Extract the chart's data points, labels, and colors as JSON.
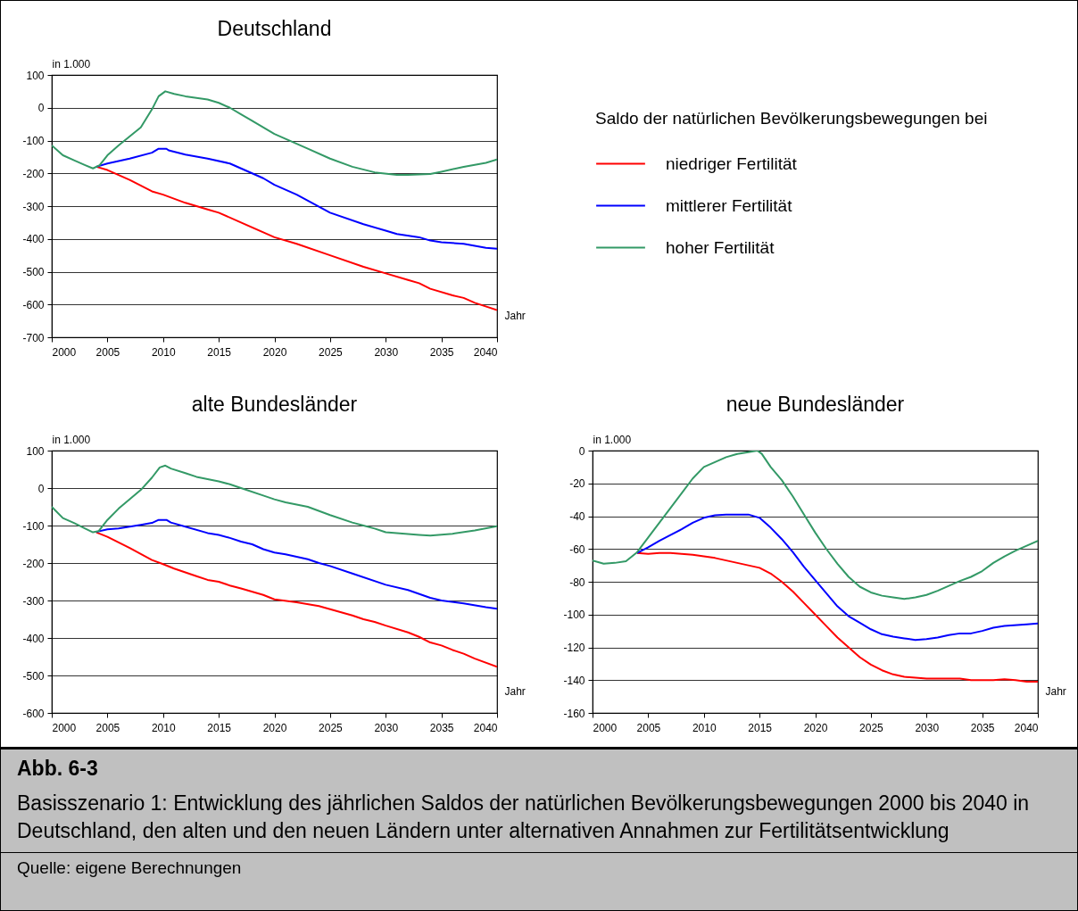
{
  "chart_data": [
    {
      "type": "line",
      "title": "Deutschland",
      "xlabel": "Jahr",
      "ylabel": "in 1.000",
      "legend_title": "Saldo der natürlichen Bevölkerungsbewegungen bei",
      "legend": "right",
      "grid": "y",
      "xlim": [
        2000,
        2040
      ],
      "xticks": [
        2000,
        2005,
        2010,
        2015,
        2020,
        2025,
        2030,
        2035,
        2040
      ],
      "ylim": [
        -700,
        100
      ],
      "yticks": [
        -700,
        -600,
        -500,
        -400,
        -300,
        -200,
        -100,
        0,
        100
      ],
      "annotations": [
        "Abb. 6-3",
        "Basisszenario 1: Entwicklung des jährlichen Saldos der natürlichen Bevölkerungsbewegungen 2000 bis 2040 in Deutschland, den alten und den neuen Ländern unter alternativen Annahmen zur Fertilitätsentwicklung",
        "Quelle: eigene Berechnungen"
      ],
      "series": [
        {
          "name": "niedriger Fertilität",
          "color": "#ff0000",
          "x": [
            2004,
            2005,
            2007,
            2009,
            2010,
            2012,
            2014,
            2015,
            2017,
            2019,
            2020,
            2022,
            2025,
            2028,
            2030,
            2032,
            2033,
            2034,
            2036,
            2037,
            2038,
            2040
          ],
          "values": [
            -180,
            -190,
            -220,
            -255,
            -265,
            -290,
            -310,
            -320,
            -350,
            -380,
            -395,
            -415,
            -450,
            -485,
            -505,
            -525,
            -535,
            -552,
            -572,
            -580,
            -595,
            -617
          ]
        },
        {
          "name": "mittlerer Fertilität",
          "color": "#0000ff",
          "x": [
            2004,
            2005,
            2007,
            2009,
            2009.6,
            2010.3,
            2010.5,
            2012,
            2014,
            2016,
            2017,
            2019,
            2020,
            2022,
            2025,
            2028,
            2030,
            2031,
            2033,
            2034,
            2035,
            2037,
            2039,
            2040
          ],
          "values": [
            -180,
            -170,
            -155,
            -137,
            -125,
            -125,
            -130,
            -143,
            -155,
            -170,
            -185,
            -215,
            -235,
            -265,
            -320,
            -355,
            -375,
            -385,
            -395,
            -405,
            -410,
            -415,
            -427,
            -430
          ]
        },
        {
          "name": "hoher Fertilität",
          "color": "#339966",
          "x": [
            2000,
            2001,
            2002,
            2003,
            2003.7,
            2004.3,
            2005,
            2006,
            2008,
            2009,
            2009.6,
            2010.2,
            2011,
            2012,
            2014,
            2015,
            2016,
            2017,
            2018,
            2020,
            2022,
            2023,
            2025,
            2027,
            2029,
            2031,
            2032,
            2034,
            2035,
            2037,
            2039,
            2040
          ],
          "values": [
            -115,
            -145,
            -160,
            -175,
            -185,
            -175,
            -145,
            -115,
            -60,
            -5,
            35,
            50,
            42,
            35,
            25,
            15,
            0,
            -20,
            -40,
            -80,
            -110,
            -125,
            -155,
            -180,
            -197,
            -205,
            -205,
            -202,
            -195,
            -180,
            -168,
            -158
          ]
        }
      ]
    },
    {
      "type": "line",
      "title": "alte Bundesländer",
      "xlabel": "Jahr",
      "ylabel": "in 1.000",
      "grid": "y",
      "xlim": [
        2000,
        2040
      ],
      "xticks": [
        2000,
        2005,
        2010,
        2015,
        2020,
        2025,
        2030,
        2035,
        2040
      ],
      "ylim": [
        -600,
        100
      ],
      "yticks": [
        -600,
        -500,
        -400,
        -300,
        -200,
        -100,
        0,
        100
      ],
      "series": [
        {
          "color": "#ff0000",
          "x": [
            2004,
            2005,
            2007,
            2009,
            2010,
            2011,
            2013,
            2014,
            2015,
            2016,
            2017,
            2019,
            2020,
            2022,
            2024,
            2025,
            2027,
            2028,
            2029,
            2030,
            2032,
            2033,
            2034,
            2035,
            2036,
            2037,
            2038,
            2040
          ],
          "values": [
            -118,
            -130,
            -160,
            -192,
            -203,
            -215,
            -235,
            -245,
            -250,
            -260,
            -268,
            -285,
            -297,
            -305,
            -315,
            -323,
            -340,
            -350,
            -357,
            -367,
            -385,
            -397,
            -412,
            -420,
            -432,
            -442,
            -455,
            -477
          ]
        },
        {
          "color": "#0000ff",
          "x": [
            2004,
            2005,
            2006,
            2007,
            2008,
            2009,
            2009.6,
            2010.3,
            2010.7,
            2012,
            2014,
            2015,
            2016,
            2017,
            2018,
            2019,
            2020,
            2021,
            2023,
            2024,
            2025,
            2027,
            2030,
            2032,
            2034,
            2035,
            2037,
            2039,
            2040
          ],
          "values": [
            -117,
            -110,
            -108,
            -103,
            -98,
            -93,
            -85,
            -85,
            -92,
            -103,
            -120,
            -125,
            -133,
            -143,
            -150,
            -163,
            -172,
            -177,
            -190,
            -200,
            -208,
            -228,
            -258,
            -272,
            -293,
            -300,
            -308,
            -318,
            -322
          ]
        },
        {
          "color": "#339966",
          "x": [
            2000,
            2001,
            2002,
            2003,
            2003.7,
            2004.2,
            2005,
            2006,
            2008,
            2009,
            2009.7,
            2010.2,
            2010.7,
            2012,
            2013,
            2015,
            2016,
            2017,
            2019,
            2020,
            2021,
            2023,
            2025,
            2027,
            2028,
            2029,
            2030,
            2031,
            2033,
            2034,
            2036,
            2038,
            2040
          ],
          "values": [
            -50,
            -80,
            -93,
            -108,
            -118,
            -115,
            -85,
            -55,
            -5,
            28,
            55,
            60,
            52,
            40,
            30,
            18,
            10,
            0,
            -20,
            -30,
            -38,
            -50,
            -72,
            -92,
            -100,
            -108,
            -118,
            -120,
            -125,
            -127,
            -122,
            -113,
            -102
          ]
        }
      ]
    },
    {
      "type": "line",
      "title": "neue Bundesländer",
      "xlabel": "Jahr",
      "ylabel": "in 1.000",
      "grid": "y",
      "xlim": [
        2000,
        2040
      ],
      "xticks": [
        2000,
        2005,
        2010,
        2015,
        2020,
        2025,
        2030,
        2035,
        2040
      ],
      "ylim": [
        -160,
        0
      ],
      "yticks": [
        -160,
        -140,
        -120,
        -100,
        -80,
        -60,
        -40,
        -20,
        0
      ],
      "series": [
        {
          "color": "#ff0000",
          "x": [
            2004,
            2005,
            2006,
            2007,
            2008,
            2009,
            2010,
            2011,
            2012,
            2013,
            2014,
            2015,
            2016,
            2017,
            2018,
            2019,
            2020,
            2021,
            2022,
            2023,
            2024,
            2025,
            2026,
            2027,
            2028,
            2029,
            2030,
            2033,
            2034,
            2036,
            2037,
            2038,
            2039,
            2040
          ],
          "values": [
            -62.5,
            -63,
            -62.5,
            -62.5,
            -63,
            -63.5,
            -64.5,
            -65.5,
            -67,
            -68.5,
            -70,
            -71.5,
            -75,
            -80,
            -86,
            -93,
            -100,
            -107,
            -114,
            -120,
            -126,
            -130.5,
            -134,
            -136.5,
            -138,
            -138.5,
            -139,
            -139,
            -140,
            -140,
            -139.5,
            -140,
            -141,
            -141
          ]
        },
        {
          "color": "#0000ff",
          "x": [
            2004,
            2005,
            2006,
            2007,
            2008,
            2009,
            2010,
            2011,
            2012,
            2014,
            2015,
            2016,
            2017,
            2018,
            2019,
            2020,
            2021,
            2022,
            2023,
            2024,
            2025,
            2026,
            2027,
            2028,
            2029,
            2030,
            2031,
            2032,
            2033,
            2034,
            2035,
            2036,
            2037,
            2039,
            2040
          ],
          "values": [
            -62.5,
            -59,
            -55,
            -51.5,
            -48,
            -44,
            -41,
            -39.5,
            -39,
            -39,
            -41,
            -47,
            -54,
            -62,
            -71,
            -79,
            -87,
            -95,
            -101,
            -105,
            -109,
            -112,
            -113.5,
            -114.5,
            -115.5,
            -115,
            -114,
            -112.5,
            -111.5,
            -111.5,
            -110,
            -108,
            -107,
            -106,
            -105.5
          ]
        },
        {
          "color": "#339966",
          "x": [
            2000,
            2001,
            2002,
            2003,
            2004,
            2005,
            2006,
            2007,
            2008,
            2009,
            2010,
            2011,
            2012,
            2013,
            2014,
            2014.8,
            2015.2,
            2016,
            2017,
            2018,
            2019,
            2020,
            2021,
            2022,
            2023,
            2024,
            2025,
            2026,
            2027,
            2028,
            2029,
            2030,
            2031,
            2032,
            2033,
            2034,
            2035,
            2036,
            2037,
            2038,
            2039,
            2040
          ],
          "values": [
            -67,
            -69,
            -68.5,
            -67.5,
            -62,
            -53,
            -44,
            -35,
            -26,
            -17,
            -10,
            -7,
            -4,
            -2,
            -1,
            0,
            -2,
            -10,
            -18,
            -28,
            -39,
            -50,
            -60,
            -69,
            -77,
            -83,
            -86.5,
            -88.5,
            -89.5,
            -90.5,
            -89.5,
            -88,
            -85.5,
            -82.5,
            -79.5,
            -77,
            -73.5,
            -68.5,
            -64.5,
            -61,
            -58,
            -55
          ]
        }
      ]
    }
  ]
}
